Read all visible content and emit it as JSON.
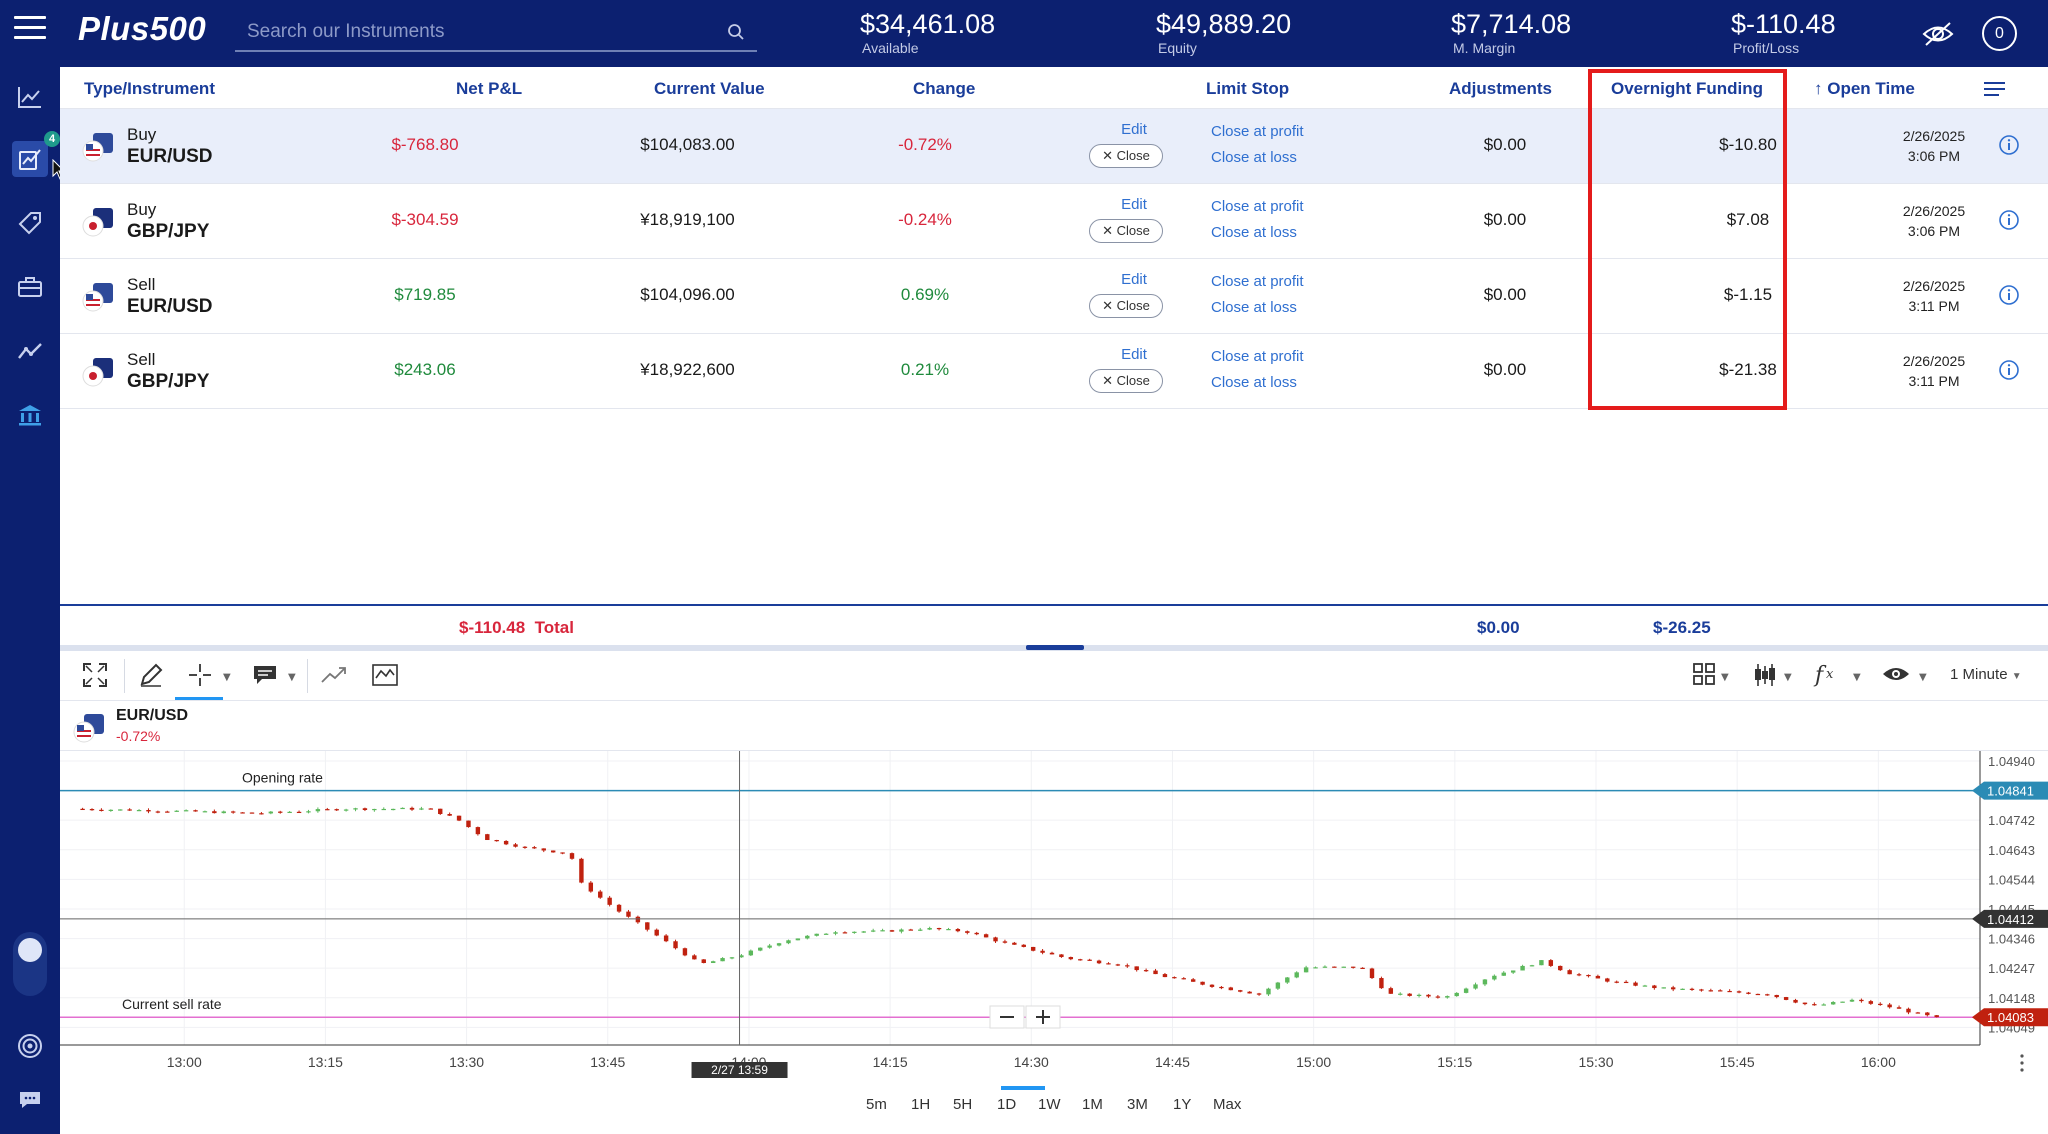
{
  "header": {
    "logo": "Plus500",
    "search_placeholder": "Search our Instruments",
    "stats": [
      {
        "value": "$34,461.08",
        "label": "Available"
      },
      {
        "value": "$49,889.20",
        "label": "Equity"
      },
      {
        "value": "$7,714.08",
        "label": "M. Margin"
      },
      {
        "value": "$-110.48",
        "label": "Profit/Loss"
      }
    ],
    "profile_count": "0"
  },
  "sidebar": {
    "items": [
      {
        "icon": "chart-line-icon"
      },
      {
        "icon": "positions-icon",
        "badge": "4",
        "active": true
      },
      {
        "icon": "tag-icon"
      },
      {
        "icon": "briefcase-icon"
      },
      {
        "icon": "trend-icon"
      },
      {
        "icon": "bank-icon"
      }
    ]
  },
  "table": {
    "headers": {
      "instrument": "Type/Instrument",
      "net_pl": "Net P&L",
      "current_value": "Current Value",
      "change": "Change",
      "limit_stop": "Limit Stop",
      "adjustments": "Adjustments",
      "overnight_funding": "Overnight Funding",
      "open_time": "Open Time"
    },
    "edit_label": "Edit",
    "close_label": "Close",
    "close_profit_label": "Close at profit",
    "close_loss_label": "Close at loss",
    "rows": [
      {
        "side": "Buy",
        "instrument": "EUR/USD",
        "net_pl": "$-768.80",
        "current_value": "$104,083.00",
        "change": "-0.72%",
        "adjustments": "$0.00",
        "overnight": "$-10.80",
        "date": "2/26/2025",
        "time": "3:06 PM",
        "trend": "neg"
      },
      {
        "side": "Buy",
        "instrument": "GBP/JPY",
        "net_pl": "$-304.59",
        "current_value": "¥18,919,100",
        "change": "-0.24%",
        "adjustments": "$0.00",
        "overnight": "$7.08",
        "date": "2/26/2025",
        "time": "3:06 PM",
        "trend": "neg"
      },
      {
        "side": "Sell",
        "instrument": "EUR/USD",
        "net_pl": "$719.85",
        "current_value": "$104,096.00",
        "change": "0.69%",
        "adjustments": "$0.00",
        "overnight": "$-1.15",
        "date": "2/26/2025",
        "time": "3:11 PM",
        "trend": "pos"
      },
      {
        "side": "Sell",
        "instrument": "GBP/JPY",
        "net_pl": "$243.06",
        "current_value": "¥18,922,600",
        "change": "0.21%",
        "adjustments": "$0.00",
        "overnight": "$-21.38",
        "date": "2/26/2025",
        "time": "3:11 PM",
        "trend": "pos"
      }
    ],
    "totals": {
      "net_pl": "$-110.48",
      "label": "Total",
      "adjustments": "$0.00",
      "overnight": "$-26.25"
    }
  },
  "chart": {
    "instrument": "EUR/USD",
    "change": "-0.72%",
    "interval": "1 Minute",
    "opening_rate_label": "Opening rate",
    "current_sell_label": "Current sell rate",
    "crosshair_time": "2/27 13:59",
    "ranges": [
      "5m",
      "1H",
      "5H",
      "1D",
      "1W",
      "1M",
      "3M",
      "1Y",
      "Max"
    ],
    "active_range": "5H",
    "colors": {
      "up": "#5cb85c",
      "down": "#c0210f",
      "opening_line": "#2b8bb5",
      "sell_line": "#e36fd0"
    }
  },
  "chart_data": {
    "type": "candlestick",
    "x_ticks": [
      "13:00",
      "13:15",
      "13:30",
      "13:45",
      "14:00",
      "14:15",
      "14:30",
      "14:45",
      "15:00",
      "15:15",
      "15:30",
      "15:45",
      "16:00"
    ],
    "y_ticks": [
      "1.04940",
      "1.04841",
      "1.04742",
      "1.04643",
      "1.04544",
      "1.04445",
      "1.04412",
      "1.04346",
      "1.04247",
      "1.04148",
      "1.04083",
      "1.04049"
    ],
    "ylim": [
      1.0399,
      1.0496
    ],
    "opening_rate": 1.04841,
    "current_sell_rate": 1.04083,
    "crosshair_price": 1.04412,
    "price_path": [
      [
        12.82,
        1.0478
      ],
      [
        12.95,
        1.04775
      ],
      [
        13.05,
        1.0477
      ],
      [
        13.15,
        1.04765
      ],
      [
        13.2,
        1.0477
      ],
      [
        13.3,
        1.0478
      ],
      [
        13.45,
        1.0478
      ],
      [
        13.5,
        1.04745
      ],
      [
        13.55,
        1.0468
      ],
      [
        13.62,
        1.0465
      ],
      [
        13.7,
        1.0463
      ],
      [
        13.72,
        1.0453
      ],
      [
        13.78,
        1.04445
      ],
      [
        13.85,
        1.0436
      ],
      [
        13.93,
        1.0426
      ],
      [
        14.0,
        1.0429
      ],
      [
        14.08,
        1.0434
      ],
      [
        14.17,
        1.0437
      ],
      [
        14.25,
        1.0437
      ],
      [
        14.33,
        1.0438
      ],
      [
        14.4,
        1.0437
      ],
      [
        14.47,
        1.0433
      ],
      [
        14.58,
        1.0428
      ],
      [
        14.67,
        1.0426
      ],
      [
        14.75,
        1.0422
      ],
      [
        14.83,
        1.0419
      ],
      [
        14.92,
        1.0416
      ],
      [
        15.0,
        1.0425
      ],
      [
        15.1,
        1.0425
      ],
      [
        15.15,
        1.0416
      ],
      [
        15.25,
        1.0415
      ],
      [
        15.33,
        1.0422
      ],
      [
        15.42,
        1.0427
      ],
      [
        15.47,
        1.0423
      ],
      [
        15.55,
        1.042
      ],
      [
        15.63,
        1.0418
      ],
      [
        15.73,
        1.0417
      ],
      [
        15.82,
        1.0416
      ],
      [
        15.9,
        1.0412
      ],
      [
        15.97,
        1.0414
      ],
      [
        16.03,
        1.0412
      ],
      [
        16.12,
        1.0408
      ]
    ]
  }
}
